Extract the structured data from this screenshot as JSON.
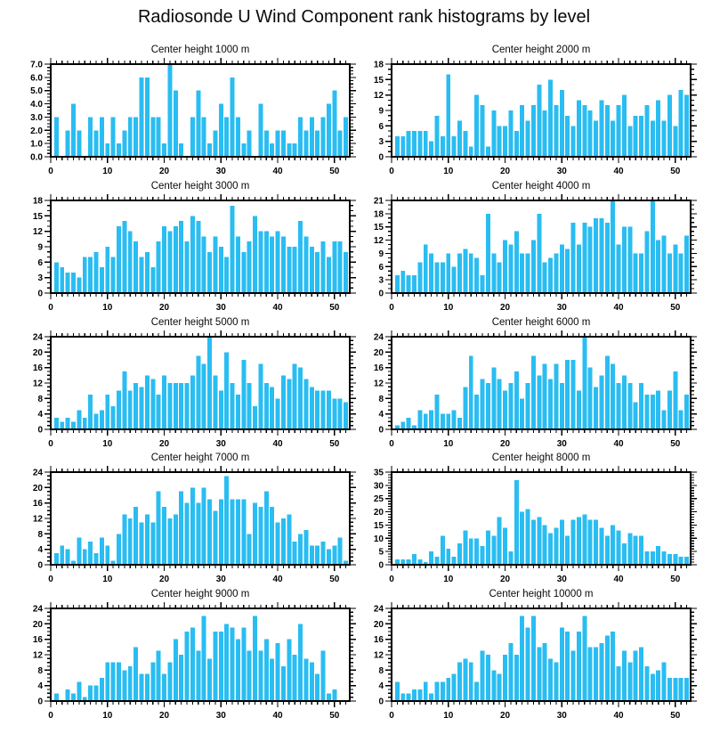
{
  "page_title": "Radiosonde U Wind Component rank histograms by level",
  "colors": {
    "bar": "#29bdf2",
    "axis": "#000000",
    "background": "#ffffff"
  },
  "chart_data": [
    {
      "type": "bar",
      "title": "Center height 1000 m",
      "xlabel": "",
      "ylabel": "",
      "xlim": [
        0,
        52.7
      ],
      "ylim": [
        0,
        7
      ],
      "xtick_step": 10,
      "xminor_step": 1,
      "ytick_step": 1,
      "yminor_step": 0.25,
      "ydecimals": 1,
      "grid": false,
      "legend": "none",
      "x_start_rank": 1,
      "values": [
        3,
        0,
        2,
        4,
        2,
        0,
        3,
        2,
        3,
        1,
        3,
        1,
        2,
        3,
        3,
        6,
        6,
        3,
        3,
        1,
        7,
        5,
        1,
        0,
        3,
        5,
        3,
        1,
        2,
        4,
        3,
        6,
        3,
        1,
        2,
        0,
        4,
        2,
        1,
        2,
        2,
        1,
        1,
        3,
        2,
        3,
        2,
        3,
        4,
        5,
        2,
        3
      ]
    },
    {
      "type": "bar",
      "title": "Center height 2000 m",
      "xlabel": "",
      "ylabel": "",
      "xlim": [
        0,
        52.7
      ],
      "ylim": [
        0,
        18
      ],
      "xtick_step": 10,
      "xminor_step": 1,
      "ytick_step": 3,
      "yminor_step": 1,
      "ydecimals": 0,
      "grid": false,
      "legend": "none",
      "x_start_rank": 1,
      "values": [
        4,
        4,
        5,
        5,
        5,
        5,
        3,
        8,
        4,
        16,
        4,
        7,
        5,
        2,
        12,
        10,
        2,
        9,
        6,
        6,
        9,
        5,
        10,
        7,
        10,
        14,
        9,
        15,
        10,
        13,
        8,
        6,
        11,
        10,
        9,
        7,
        11,
        10,
        7,
        10,
        12,
        6,
        8,
        8,
        10,
        7,
        11,
        7,
        12,
        6,
        13,
        12
      ]
    },
    {
      "type": "bar",
      "title": "Center height 3000 m",
      "xlabel": "",
      "ylabel": "",
      "xlim": [
        0,
        52.7
      ],
      "ylim": [
        0,
        18
      ],
      "xtick_step": 10,
      "xminor_step": 1,
      "ytick_step": 3,
      "yminor_step": 1,
      "ydecimals": 0,
      "grid": false,
      "legend": "none",
      "x_start_rank": 1,
      "values": [
        6,
        5,
        4,
        4,
        3,
        7,
        7,
        8,
        5,
        9,
        7,
        13,
        14,
        12,
        10,
        7,
        8,
        5,
        10,
        13,
        12,
        13,
        14,
        10,
        15,
        14,
        11,
        8,
        11,
        9,
        7,
        17,
        11,
        8,
        10,
        15,
        12,
        12,
        11,
        12,
        11,
        9,
        9,
        14,
        11,
        9,
        8,
        10,
        7,
        10,
        10,
        8
      ]
    },
    {
      "type": "bar",
      "title": "Center height 4000 m",
      "xlabel": "",
      "ylabel": "",
      "xlim": [
        0,
        52.7
      ],
      "ylim": [
        0,
        21
      ],
      "xtick_step": 10,
      "xminor_step": 1,
      "ytick_step": 3,
      "yminor_step": 1,
      "ydecimals": 0,
      "grid": false,
      "legend": "none",
      "x_start_rank": 1,
      "values": [
        4,
        5,
        4,
        4,
        7,
        11,
        9,
        7,
        7,
        9,
        6,
        9,
        10,
        9,
        8,
        4,
        18,
        9,
        7,
        12,
        11,
        14,
        9,
        9,
        12,
        18,
        7,
        8,
        9,
        11,
        10,
        16,
        11,
        16,
        15,
        17,
        17,
        16,
        21,
        11,
        15,
        15,
        9,
        9,
        14,
        21,
        12,
        13,
        9,
        11,
        9,
        13
      ]
    },
    {
      "type": "bar",
      "title": "Center height 5000 m",
      "xlabel": "",
      "ylabel": "",
      "xlim": [
        0,
        52.7
      ],
      "ylim": [
        0,
        24
      ],
      "xtick_step": 10,
      "xminor_step": 1,
      "ytick_step": 4,
      "yminor_step": 1,
      "ydecimals": 0,
      "grid": false,
      "legend": "none",
      "x_start_rank": 1,
      "values": [
        3,
        2,
        3,
        2,
        5,
        3,
        9,
        4,
        5,
        9,
        6,
        10,
        15,
        10,
        12,
        11,
        14,
        13,
        9,
        14,
        12,
        12,
        12,
        12,
        14,
        19,
        17,
        24,
        14,
        10,
        20,
        12,
        9,
        18,
        12,
        6,
        17,
        12,
        11,
        8,
        14,
        13,
        17,
        16,
        13,
        11,
        10,
        10,
        10,
        8,
        8,
        7
      ]
    },
    {
      "type": "bar",
      "title": "Center height 6000 m",
      "xlabel": "",
      "ylabel": "",
      "xlim": [
        0,
        52.7
      ],
      "ylim": [
        0,
        24
      ],
      "xtick_step": 10,
      "xminor_step": 1,
      "ytick_step": 4,
      "yminor_step": 1,
      "ydecimals": 0,
      "grid": false,
      "legend": "none",
      "x_start_rank": 1,
      "values": [
        1,
        2,
        3,
        1,
        5,
        4,
        5,
        9,
        4,
        4,
        5,
        3,
        11,
        19,
        9,
        13,
        12,
        16,
        13,
        10,
        12,
        15,
        8,
        12,
        19,
        14,
        17,
        13,
        17,
        12,
        18,
        18,
        10,
        24,
        16,
        11,
        14,
        19,
        17,
        12,
        14,
        12,
        7,
        12,
        9,
        9,
        10,
        5,
        10,
        15,
        5,
        9
      ]
    },
    {
      "type": "bar",
      "title": "Center height 7000 m",
      "xlabel": "",
      "ylabel": "",
      "xlim": [
        0,
        52.7
      ],
      "ylim": [
        0,
        24
      ],
      "xtick_step": 10,
      "xminor_step": 1,
      "ytick_step": 4,
      "yminor_step": 1,
      "ydecimals": 0,
      "grid": false,
      "legend": "none",
      "x_start_rank": 1,
      "values": [
        3,
        5,
        4,
        1,
        7,
        4,
        6,
        3,
        7,
        5,
        1,
        8,
        13,
        12,
        15,
        11,
        13,
        11,
        19,
        15,
        12,
        13,
        19,
        16,
        20,
        16,
        20,
        17,
        14,
        17,
        23,
        17,
        17,
        17,
        8,
        16,
        15,
        19,
        15,
        11,
        12,
        13,
        6,
        8,
        9,
        5,
        5,
        6,
        4,
        5,
        7,
        1
      ]
    },
    {
      "type": "bar",
      "title": "Center height 8000 m",
      "xlabel": "",
      "ylabel": "",
      "xlim": [
        0,
        52.7
      ],
      "ylim": [
        0,
        35
      ],
      "xtick_step": 10,
      "xminor_step": 1,
      "ytick_step": 5,
      "yminor_step": 1,
      "ydecimals": 0,
      "grid": false,
      "legend": "none",
      "x_start_rank": 1,
      "values": [
        2,
        2,
        2,
        4,
        2,
        1,
        5,
        3,
        11,
        6,
        3,
        8,
        13,
        10,
        10,
        7,
        13,
        11,
        18,
        14,
        5,
        32,
        20,
        21,
        17,
        18,
        15,
        12,
        14,
        17,
        11,
        17,
        18,
        19,
        17,
        17,
        14,
        11,
        15,
        13,
        8,
        12,
        11,
        11,
        5,
        5,
        7,
        5,
        4,
        4,
        3,
        3
      ]
    },
    {
      "type": "bar",
      "title": "Center height 9000 m",
      "xlabel": "",
      "ylabel": "",
      "xlim": [
        0,
        52.7
      ],
      "ylim": [
        0,
        24
      ],
      "xtick_step": 10,
      "xminor_step": 1,
      "ytick_step": 4,
      "yminor_step": 1,
      "ydecimals": 0,
      "grid": false,
      "legend": "none",
      "x_start_rank": 1,
      "values": [
        2,
        0,
        3,
        2,
        5,
        1,
        4,
        4,
        6,
        10,
        10,
        10,
        8,
        9,
        14,
        7,
        7,
        10,
        13,
        7,
        10,
        16,
        12,
        18,
        19,
        13,
        22,
        11,
        18,
        18,
        20,
        19,
        16,
        19,
        13,
        22,
        13,
        16,
        11,
        15,
        9,
        16,
        12,
        20,
        11,
        10,
        7,
        13,
        2,
        3,
        0,
        0
      ]
    },
    {
      "type": "bar",
      "title": "Center height 10000 m",
      "xlabel": "",
      "ylabel": "",
      "xlim": [
        0,
        52.7
      ],
      "ylim": [
        0,
        24
      ],
      "xtick_step": 10,
      "xminor_step": 1,
      "ytick_step": 4,
      "yminor_step": 1,
      "ydecimals": 0,
      "grid": false,
      "legend": "none",
      "x_start_rank": 1,
      "values": [
        5,
        2,
        2,
        3,
        3,
        5,
        2,
        5,
        5,
        6,
        7,
        10,
        11,
        10,
        5,
        13,
        12,
        8,
        7,
        12,
        15,
        12,
        22,
        19,
        22,
        14,
        15,
        11,
        10,
        19,
        18,
        13,
        18,
        22,
        14,
        14,
        15,
        17,
        18,
        9,
        13,
        10,
        13,
        14,
        9,
        7,
        8,
        10,
        6,
        6,
        6,
        6
      ]
    }
  ]
}
